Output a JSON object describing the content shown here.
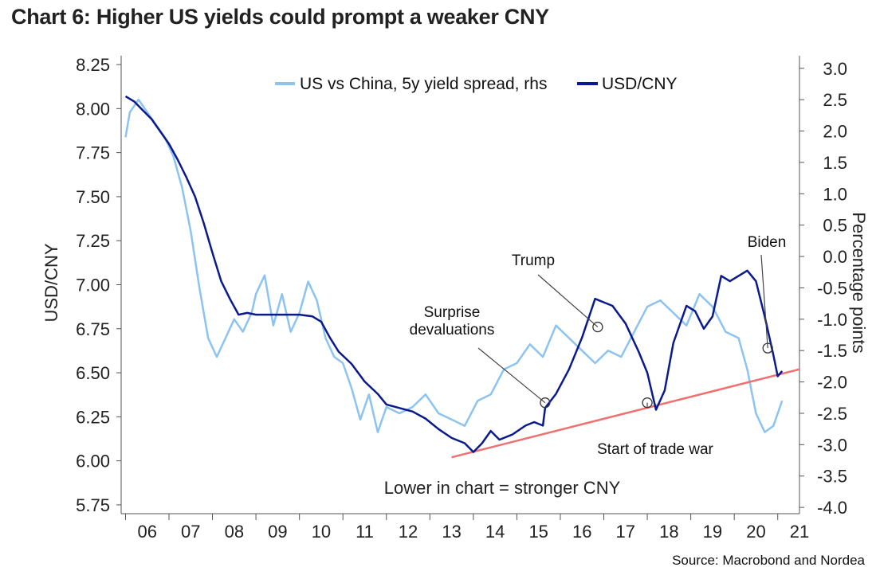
{
  "header": {
    "title": "Chart 6: Higher US yields could prompt a weaker CNY",
    "source": "Source: Macrobond and Nordea"
  },
  "chart_data": {
    "type": "line",
    "title": "Chart 6: Higher US yields could prompt a weaker CNY",
    "xlabel": "",
    "ylabel": "USD/CNY",
    "y2label": "Percentage points",
    "x_ticks": [
      "06",
      "07",
      "08",
      "09",
      "10",
      "11",
      "12",
      "13",
      "14",
      "15",
      "16",
      "17",
      "18",
      "19",
      "20",
      "21"
    ],
    "x_range": [
      2005.9,
      2021.5
    ],
    "ylim": [
      5.7,
      8.3
    ],
    "y_ticks": [
      "5.75",
      "6.00",
      "6.25",
      "6.50",
      "6.75",
      "7.00",
      "7.25",
      "7.50",
      "7.75",
      "8.00",
      "8.25"
    ],
    "y2lim": [
      -4.1,
      3.2
    ],
    "y2_ticks": [
      "-4.0",
      "-3.5",
      "-3.0",
      "-2.5",
      "-2.0",
      "-1.5",
      "-1.0",
      "-0.5",
      "0.0",
      "0.5",
      "1.0",
      "1.5",
      "2.0",
      "2.5",
      "3.0"
    ],
    "legend": [
      "US vs China, 5y yield spread, rhs",
      "USD/CNY"
    ],
    "legend_position": "top-center",
    "series": [
      {
        "name": "USD/CNY",
        "axis": "left",
        "color": "#0a1a8c",
        "x": [
          2006.0,
          2006.2,
          2006.4,
          2006.6,
          2006.8,
          2007.0,
          2007.2,
          2007.4,
          2007.6,
          2007.8,
          2008.0,
          2008.2,
          2008.4,
          2008.6,
          2008.8,
          2009.0,
          2009.5,
          2010.0,
          2010.3,
          2010.5,
          2010.7,
          2010.9,
          2011.2,
          2011.5,
          2011.8,
          2012.0,
          2012.3,
          2012.6,
          2012.9,
          2013.2,
          2013.5,
          2013.8,
          2014.0,
          2014.2,
          2014.4,
          2014.6,
          2014.9,
          2015.2,
          2015.4,
          2015.6,
          2015.65,
          2015.9,
          2016.2,
          2016.5,
          2016.8,
          2017.0,
          2017.2,
          2017.5,
          2017.8,
          2018.0,
          2018.2,
          2018.4,
          2018.6,
          2018.9,
          2019.1,
          2019.3,
          2019.5,
          2019.7,
          2019.9,
          2020.1,
          2020.3,
          2020.5,
          2020.7,
          2020.9,
          2021.0,
          2021.1
        ],
        "values": [
          8.07,
          8.04,
          7.99,
          7.94,
          7.87,
          7.8,
          7.71,
          7.61,
          7.5,
          7.35,
          7.18,
          7.02,
          6.92,
          6.83,
          6.84,
          6.83,
          6.83,
          6.83,
          6.82,
          6.79,
          6.7,
          6.62,
          6.55,
          6.45,
          6.38,
          6.32,
          6.3,
          6.28,
          6.24,
          6.18,
          6.13,
          6.1,
          6.05,
          6.1,
          6.17,
          6.12,
          6.15,
          6.2,
          6.22,
          6.2,
          6.3,
          6.38,
          6.52,
          6.7,
          6.92,
          6.9,
          6.88,
          6.78,
          6.62,
          6.5,
          6.29,
          6.4,
          6.67,
          6.88,
          6.85,
          6.75,
          6.82,
          7.05,
          7.02,
          7.05,
          7.08,
          7.02,
          6.82,
          6.6,
          6.48,
          6.51
        ]
      },
      {
        "name": "US vs China, 5y yield spread, rhs",
        "axis": "right",
        "color": "#8cc3f0",
        "x": [
          2006.0,
          2006.1,
          2006.3,
          2006.5,
          2006.7,
          2006.9,
          2007.1,
          2007.3,
          2007.5,
          2007.7,
          2007.9,
          2008.1,
          2008.3,
          2008.5,
          2008.7,
          2008.9,
          2009.0,
          2009.2,
          2009.4,
          2009.6,
          2009.8,
          2010.0,
          2010.2,
          2010.4,
          2010.6,
          2010.8,
          2011.0,
          2011.2,
          2011.4,
          2011.6,
          2011.8,
          2012.0,
          2012.3,
          2012.6,
          2012.9,
          2013.2,
          2013.5,
          2013.8,
          2014.1,
          2014.4,
          2014.7,
          2015.0,
          2015.3,
          2015.6,
          2015.9,
          2016.2,
          2016.5,
          2016.8,
          2017.1,
          2017.4,
          2017.7,
          2018.0,
          2018.3,
          2018.6,
          2018.9,
          2019.2,
          2019.5,
          2019.8,
          2020.1,
          2020.3,
          2020.5,
          2020.7,
          2020.9,
          2021.1
        ],
        "values": [
          1.9,
          2.3,
          2.5,
          2.3,
          2.1,
          1.9,
          1.6,
          1.1,
          0.4,
          -0.5,
          -1.3,
          -1.6,
          -1.3,
          -1.0,
          -1.2,
          -0.9,
          -0.6,
          -0.3,
          -1.1,
          -0.6,
          -1.2,
          -0.9,
          -0.4,
          -0.7,
          -1.3,
          -1.6,
          -1.7,
          -2.1,
          -2.6,
          -2.2,
          -2.8,
          -2.4,
          -2.5,
          -2.4,
          -2.2,
          -2.5,
          -2.6,
          -2.7,
          -2.3,
          -2.2,
          -1.8,
          -1.7,
          -1.4,
          -1.6,
          -1.1,
          -1.3,
          -1.5,
          -1.7,
          -1.5,
          -1.6,
          -1.2,
          -0.8,
          -0.7,
          -0.9,
          -1.1,
          -0.6,
          -0.8,
          -1.2,
          -1.3,
          -1.8,
          -2.5,
          -2.8,
          -2.7,
          -2.3
        ]
      },
      {
        "name": "Trend line",
        "axis": "left",
        "color": "#f07070",
        "x": [
          2013.5,
          2021.5
        ],
        "values": [
          6.02,
          6.52
        ]
      }
    ],
    "annotations": [
      {
        "label": "Surprise",
        "label2": "devaluations",
        "x": 2015.65,
        "y": 6.33
      },
      {
        "label": "Trump",
        "x": 2016.86,
        "y": 6.76
      },
      {
        "label": "Start of trade war",
        "x": 2018.0,
        "y": 6.33
      },
      {
        "label": "Biden",
        "x": 2020.77,
        "y": 6.64
      }
    ],
    "note": "Lower in chart = stronger CNY"
  }
}
